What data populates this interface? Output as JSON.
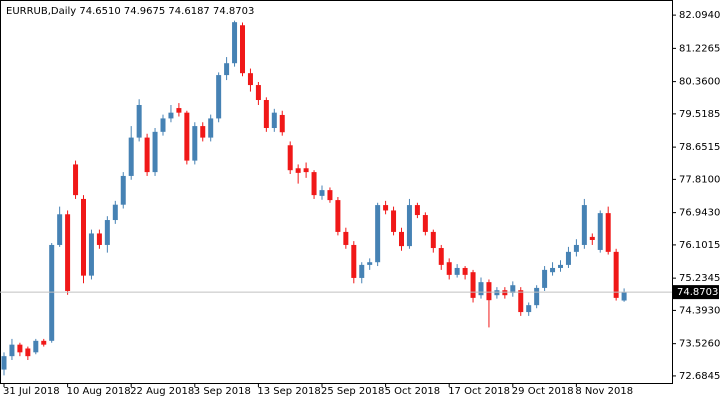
{
  "chart_data": {
    "type": "candlestick",
    "title": "EURRUB,Daily  74.6510 74.9675 74.6187 74.8703",
    "up_color": "#4682b4",
    "down_color": "#f01818",
    "ylim": [
      72.5,
      82.41
    ],
    "yticks": [
      {
        "value": 82.094,
        "label": "82.0940"
      },
      81.2265,
      {
        "value": 80.36,
        "label": "80.3600"
      },
      79.5185,
      78.6515,
      {
        "value": 77.81,
        "label": "77.8100"
      },
      {
        "value": 76.943,
        "label": "76.9430"
      },
      76.1015,
      75.2345,
      {
        "value": 74.393,
        "label": "74.3930"
      },
      {
        "value": 73.526,
        "label": "73.5260"
      },
      72.6845
    ],
    "categories": [
      "31 Jul 2018",
      null,
      null,
      null,
      null,
      null,
      null,
      null,
      "10 Aug 2018",
      null,
      null,
      null,
      null,
      null,
      null,
      null,
      "22 Aug 2018",
      null,
      null,
      null,
      null,
      null,
      null,
      null,
      "3 Sep 2018",
      null,
      null,
      null,
      null,
      null,
      null,
      null,
      "13 Sep 2018",
      null,
      null,
      null,
      null,
      null,
      null,
      null,
      "25 Sep 2018",
      null,
      null,
      null,
      null,
      null,
      null,
      null,
      "5 Oct 2018",
      null,
      null,
      null,
      null,
      null,
      null,
      null,
      "17 Oct 2018",
      null,
      null,
      null,
      null,
      null,
      null,
      null,
      "29 Oct 2018",
      null,
      null,
      null,
      null,
      null,
      null,
      null,
      "8 Nov 2018",
      null,
      null,
      null,
      null,
      null,
      null
    ],
    "open": [
      72.85,
      73.2,
      73.5,
      73.4,
      73.3,
      73.6,
      73.6,
      76.1,
      76.9,
      78.2,
      77.3,
      75.3,
      76.4,
      76.1,
      76.75,
      77.15,
      77.9,
      78.9,
      78.9,
      78.0,
      79.05,
      79.4,
      79.67,
      79.55,
      78.3,
      79.2,
      78.9,
      79.4,
      80.53,
      80.84,
      81.83,
      80.58,
      80.27,
      79.88,
      79.15,
      79.49,
      78.7,
      78.1,
      78.1,
      78.0,
      77.38,
      77.53,
      77.27,
      76.44,
      76.1,
      75.24,
      75.58,
      75.65,
      77.14,
      77.0,
      76.44,
      76.07,
      77.14,
      76.88,
      76.44,
      76.02,
      75.65,
      75.32,
      75.5,
      75.39,
      74.79,
      75.13,
      74.79,
      74.92,
      74.85,
      74.92,
      74.35,
      74.53,
      74.98,
      75.39,
      75.5,
      75.58,
      75.92,
      76.1,
      76.31,
      75.97,
      76.93,
      75.92,
      74.651
    ],
    "high": [
      73.3,
      73.65,
      73.55,
      73.45,
      73.65,
      73.65,
      76.15,
      77.1,
      77.0,
      78.3,
      77.4,
      76.5,
      76.5,
      76.85,
      77.25,
      78.0,
      79.2,
      79.9,
      79.0,
      79.15,
      79.5,
      79.75,
      79.8,
      79.6,
      79.3,
      79.3,
      79.5,
      80.6,
      81.0,
      81.95,
      81.9,
      80.7,
      80.35,
      79.95,
      79.65,
      79.6,
      78.8,
      78.2,
      78.25,
      78.05,
      77.65,
      77.6,
      77.35,
      76.55,
      76.2,
      75.65,
      75.75,
      77.2,
      77.25,
      77.1,
      76.55,
      77.3,
      77.2,
      76.95,
      76.5,
      76.1,
      75.75,
      75.6,
      75.55,
      75.45,
      75.25,
      75.2,
      75.0,
      75.0,
      75.15,
      75.0,
      74.6,
      75.05,
      75.55,
      75.65,
      75.7,
      76.05,
      76.25,
      77.3,
      76.4,
      77.0,
      77.1,
      76.0,
      74.9675
    ],
    "low": [
      72.7,
      73.1,
      73.2,
      73.1,
      73.25,
      73.45,
      73.55,
      76.05,
      74.8,
      77.3,
      75.1,
      75.2,
      76.0,
      75.9,
      76.65,
      77.05,
      77.8,
      78.8,
      77.9,
      77.9,
      78.95,
      79.3,
      79.45,
      78.2,
      78.2,
      78.8,
      78.8,
      79.3,
      80.4,
      80.75,
      80.5,
      80.1,
      79.75,
      79.05,
      79.05,
      78.95,
      77.95,
      77.7,
      77.85,
      77.3,
      77.28,
      77.2,
      76.35,
      76.0,
      75.1,
      75.1,
      75.45,
      75.55,
      76.9,
      76.35,
      75.95,
      76.0,
      76.8,
      76.35,
      75.9,
      75.45,
      75.2,
      75.25,
      75.2,
      74.6,
      74.7,
      73.95,
      74.7,
      74.7,
      74.75,
      74.25,
      74.25,
      74.45,
      74.9,
      75.3,
      75.4,
      75.5,
      75.8,
      76.0,
      76.1,
      75.9,
      75.85,
      74.65,
      74.6187
    ],
    "close": [
      73.2,
      73.5,
      73.3,
      73.2,
      73.6,
      73.5,
      76.1,
      76.9,
      74.9,
      77.4,
      75.3,
      76.4,
      76.1,
      76.75,
      77.15,
      77.9,
      78.9,
      79.75,
      78.0,
      79.05,
      79.4,
      79.55,
      79.55,
      78.3,
      79.2,
      78.9,
      79.4,
      80.53,
      80.84,
      81.91,
      80.58,
      80.27,
      79.88,
      79.15,
      79.55,
      79.04,
      78.05,
      77.98,
      78.0,
      77.4,
      77.53,
      77.27,
      76.44,
      76.1,
      75.24,
      75.58,
      75.65,
      77.14,
      77.0,
      76.44,
      76.07,
      77.14,
      76.88,
      76.44,
      76.02,
      75.58,
      75.32,
      75.5,
      75.32,
      74.72,
      75.13,
      74.66,
      74.92,
      74.79,
      75.05,
      74.35,
      74.53,
      74.98,
      75.45,
      75.5,
      75.58,
      75.92,
      76.1,
      77.14,
      76.23,
      76.93,
      75.92,
      74.72,
      74.8703
    ]
  }
}
